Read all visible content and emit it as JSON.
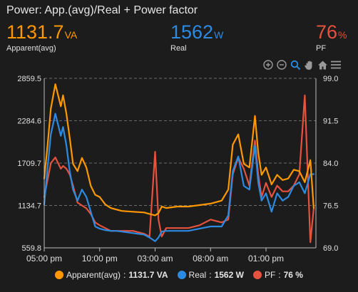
{
  "card": {
    "title": "Power: App.(avg)/Real + Power factor"
  },
  "stats": {
    "apparent": {
      "value": "1131.7",
      "unit": "VA",
      "label": "Apparent(avg)",
      "color": "#ff9800"
    },
    "real": {
      "value": "1562",
      "unit": "W",
      "label": "Real",
      "color": "#2c8ae0"
    },
    "pf": {
      "value": "76",
      "unit": "%",
      "label": "PF",
      "color": "#e5523e"
    }
  },
  "toolbar": {
    "icons": [
      "zoom-in-icon",
      "zoom-out-icon",
      "zoom-select-icon",
      "pan-icon",
      "home-icon",
      "menu-icon"
    ]
  },
  "chart_data": {
    "type": "line",
    "x_ticks": [
      "05:00 pm",
      "10:00 pm",
      "03:00 am",
      "08:00 am",
      "01:00 pm"
    ],
    "x_tick_hours": [
      17,
      22,
      27,
      32,
      37
    ],
    "x_range_hours": [
      17,
      41.5
    ],
    "y_left": {
      "ticks": [
        "2859.5",
        "2284.6",
        "1709.7",
        "1134.7",
        "559.8"
      ],
      "range": [
        559.8,
        2859.5
      ]
    },
    "y_right": {
      "ticks": [
        "99.0",
        "91.5",
        "84.0",
        "76.5",
        "69.0"
      ],
      "range": [
        69.0,
        99.0
      ]
    },
    "grid": true,
    "legend_position": "bottom-center",
    "series": [
      {
        "name": "Apparent(avg)",
        "color": "#ff9800",
        "axis": "left",
        "legend_value": "1131.7 VA",
        "x": [
          17,
          17.3,
          17.6,
          18.0,
          18.5,
          18.7,
          19.0,
          19.3,
          19.6,
          20.0,
          20.4,
          20.8,
          21.2,
          21.6,
          22.0,
          22.5,
          23.0,
          23.5,
          24.0,
          25.0,
          26.0,
          26.5,
          27.0,
          27.3,
          27.6,
          28.0,
          29.0,
          30.0,
          31.0,
          32.0,
          33.0,
          33.6,
          34.0,
          34.5,
          35.0,
          35.5,
          36.0,
          36.3,
          36.6,
          37.0,
          37.5,
          38.0,
          38.5,
          39.0,
          39.5,
          40.0,
          40.5,
          41.0,
          41.3
        ],
        "y": [
          1500,
          1950,
          2450,
          2780,
          2480,
          2630,
          2380,
          2050,
          1700,
          1600,
          1780,
          1650,
          1400,
          1280,
          1250,
          1150,
          1100,
          1080,
          1060,
          1050,
          1040,
          1020,
          1000,
          1030,
          1120,
          1100,
          1120,
          1120,
          1140,
          1160,
          1200,
          1350,
          1960,
          2100,
          1700,
          1650,
          2350,
          1850,
          1550,
          1650,
          1420,
          1550,
          1480,
          1500,
          1620,
          1600,
          1450,
          1750,
          1100
        ]
      },
      {
        "name": "Real",
        "color": "#2c8ae0",
        "axis": "left",
        "legend_value": "1562 W",
        "x": [
          17,
          17.3,
          17.6,
          18.0,
          18.5,
          18.7,
          19.0,
          19.3,
          19.6,
          20.0,
          20.4,
          20.8,
          21.2,
          21.6,
          22.0,
          22.5,
          23.0,
          23.5,
          24.0,
          25.0,
          26.0,
          26.5,
          27.0,
          27.3,
          27.6,
          28.0,
          29.0,
          30.0,
          31.0,
          32.0,
          33.0,
          33.6,
          34.0,
          34.5,
          35.0,
          35.5,
          36.0,
          36.3,
          36.6,
          37.0,
          37.5,
          38.0,
          38.5,
          39.0,
          39.5,
          40.0,
          40.5,
          41.0,
          41.3
        ],
        "y": [
          1150,
          1650,
          2100,
          2380,
          2080,
          2200,
          1950,
          1600,
          1350,
          1200,
          1350,
          1250,
          1050,
          850,
          820,
          800,
          790,
          790,
          780,
          760,
          740,
          700,
          650,
          700,
          780,
          790,
          790,
          790,
          820,
          850,
          850,
          1000,
          1600,
          1800,
          1400,
          1350,
          1950,
          1450,
          1200,
          1300,
          1050,
          1300,
          1200,
          1250,
          1400,
          1450,
          1300,
          1560,
          1560
        ]
      },
      {
        "name": "PF",
        "color": "#e5523e",
        "axis": "right",
        "legend_value": "76 %",
        "x": [
          17,
          17.3,
          17.6,
          18.0,
          18.5,
          18.7,
          19.0,
          19.3,
          19.6,
          20.0,
          20.4,
          20.8,
          21.2,
          21.6,
          22.0,
          22.5,
          23.0,
          23.5,
          24.0,
          25.0,
          26.0,
          26.5,
          27.0,
          27.3,
          27.6,
          28.0,
          29.0,
          30.0,
          31.0,
          32.0,
          33.0,
          33.6,
          34.0,
          34.5,
          35.0,
          35.5,
          36.0,
          36.3,
          36.6,
          37.0,
          37.5,
          38.0,
          38.5,
          39.0,
          39.5,
          40.0,
          40.5,
          41.0,
          41.3
        ],
        "y": [
          78,
          81,
          84,
          85,
          83,
          83.5,
          83,
          82,
          80,
          77,
          76.5,
          76,
          75,
          73.5,
          73,
          72.5,
          72,
          72,
          72,
          72,
          71.5,
          71,
          86,
          74,
          71,
          72.5,
          72.5,
          72.5,
          73,
          74,
          73.5,
          74,
          82,
          85,
          83,
          80,
          88,
          82,
          78,
          80.5,
          78,
          80,
          79,
          79,
          80,
          82,
          96,
          70,
          76
        ]
      }
    ]
  }
}
